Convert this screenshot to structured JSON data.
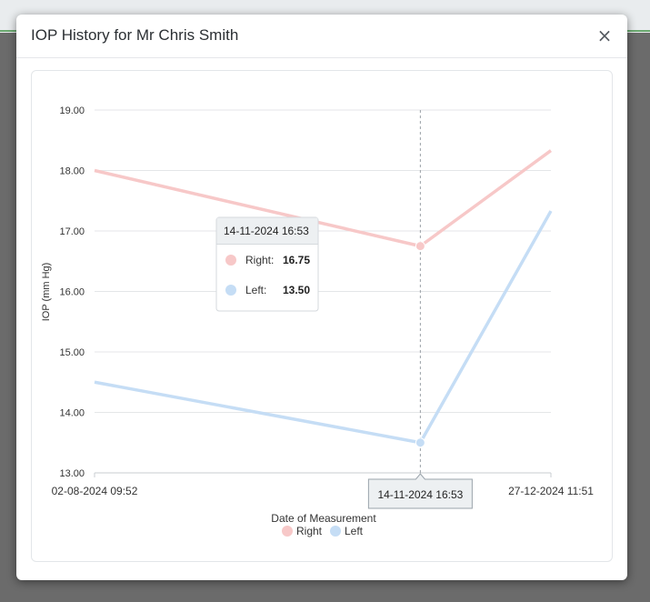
{
  "modal": {
    "title": "IOP History for Mr Chris Smith",
    "close_icon": "×"
  },
  "chart_data": {
    "type": "line",
    "xlabel": "Date of Measurement",
    "ylabel": "IOP (mm Hg)",
    "ylim": [
      13,
      19
    ],
    "yticks": [
      "13.00",
      "14.00",
      "15.00",
      "16.00",
      "17.00",
      "18.00",
      "19.00"
    ],
    "x": [
      "02-08-2024 09:52",
      "14-11-2024 16:53",
      "27-12-2024 11:51"
    ],
    "x_days": [
      0,
      104.3,
      146.1
    ],
    "x_axis_labels": [
      "02-08-2024 09:52",
      "27-12-2024 11:51"
    ],
    "series": [
      {
        "name": "Right",
        "values": [
          18.0,
          16.75,
          18.33
        ],
        "color": "#f7c8c8"
      },
      {
        "name": "Left",
        "values": [
          14.5,
          13.5,
          17.33
        ],
        "color": "#c5ddf5"
      }
    ],
    "legend_position": "bottom",
    "grid": true,
    "tooltip": {
      "title": "14-11-2024 16:53",
      "index": 1,
      "rows": [
        {
          "label": "Right:",
          "value": "16.75",
          "color": "#f7c8c8"
        },
        {
          "label": "Left:",
          "value": "13.50",
          "color": "#c5ddf5"
        }
      ]
    },
    "crosshair_label": "14-11-2024 16:53"
  }
}
